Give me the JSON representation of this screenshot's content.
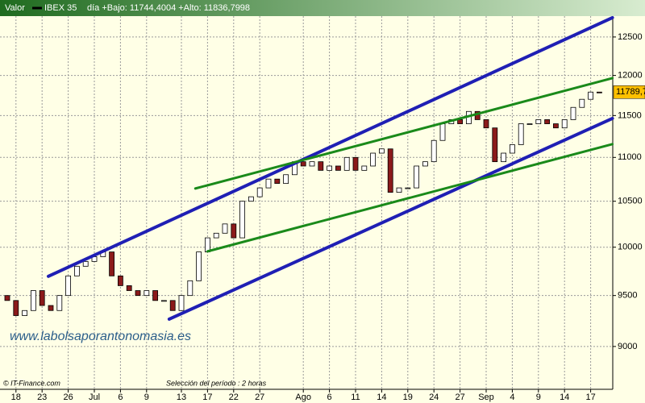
{
  "chart_data": {
    "type": "candlestick",
    "header": {
      "label": "Valor",
      "info": "día +Bajo: 11744,4004 +Alto: 11836,7998"
    },
    "series_name": "IBEX 35",
    "categories": [
      null,
      "18",
      null,
      null,
      "23",
      null,
      null,
      "26",
      null,
      null,
      "Jul",
      null,
      null,
      "6",
      null,
      null,
      "9",
      null,
      null,
      null,
      "13",
      null,
      null,
      "17",
      null,
      null,
      "22",
      null,
      null,
      "27",
      null,
      null,
      null,
      null,
      "Ago",
      null,
      null,
      "6",
      null,
      null,
      "11",
      null,
      null,
      "14",
      null,
      null,
      "19",
      null,
      null,
      "24",
      null,
      null,
      "27",
      null,
      null,
      "Sep",
      null,
      null,
      "4",
      null,
      null,
      "9",
      null,
      null,
      "14",
      null,
      null,
      "17",
      null,
      null
    ],
    "open": [
      9500,
      9450,
      9300,
      9350,
      9550,
      9400,
      9350,
      9500,
      9700,
      9800,
      9850,
      9900,
      9950,
      9700,
      9600,
      9550,
      9500,
      9550,
      9450,
      9450,
      9350,
      9500,
      9650,
      9950,
      10100,
      10150,
      10250,
      10100,
      10500,
      10550,
      10650,
      10750,
      10700,
      10800,
      10950,
      10900,
      10950,
      10850,
      10900,
      10850,
      11000,
      10850,
      10900,
      11050,
      11100,
      10600,
      10650,
      10650,
      10900,
      10950,
      11200,
      11400,
      11450,
      11400,
      11550,
      11450,
      11350,
      10950,
      11050,
      11150,
      11400,
      11400,
      11450,
      11400,
      11350,
      11450,
      11600,
      11700,
      11790,
      null
    ],
    "close": [
      9450,
      9300,
      9350,
      9550,
      9400,
      9350,
      9500,
      9700,
      9800,
      9850,
      9900,
      9950,
      9700,
      9600,
      9550,
      9500,
      9550,
      9450,
      9450,
      9350,
      9500,
      9650,
      9950,
      10100,
      10150,
      10250,
      10100,
      10500,
      10550,
      10650,
      10750,
      10700,
      10800,
      10950,
      10900,
      10950,
      10850,
      10900,
      10850,
      11000,
      10850,
      10900,
      11050,
      11100,
      10600,
      10650,
      10650,
      10900,
      10950,
      11200,
      11400,
      11450,
      11400,
      11550,
      11450,
      11350,
      10950,
      11050,
      11150,
      11400,
      11400,
      11450,
      11400,
      11350,
      11450,
      11600,
      11700,
      11790,
      11789.7,
      null
    ],
    "up_color": "#ffffff",
    "down_color": "#8b1a1a",
    "log_scale": true,
    "ylim": [
      8600,
      12780
    ],
    "yticks": [
      9000,
      9500,
      10000,
      10500,
      11000,
      11500,
      12000,
      12500
    ],
    "grid": true,
    "last_price": {
      "value": 11789.7,
      "label": "11789,7"
    },
    "trendlines": [
      {
        "color": "#1f1fb4",
        "start": [
          4.72,
          9696
        ],
        "end": [
          69.5,
          12759
        ]
      },
      {
        "color": "#1f1fb4",
        "start": [
          18.6,
          9265
        ],
        "end": [
          69.5,
          11465
        ]
      },
      {
        "color": "#1a8a1a",
        "start": [
          21.6,
          10643
        ],
        "end": [
          69.5,
          11966
        ]
      },
      {
        "color": "#1a8a1a",
        "start": [
          23,
          9956
        ],
        "end": [
          69.5,
          11156
        ]
      }
    ],
    "watermark": "www.labolsaporantonomasia.es",
    "source": "© IT-Finance.com",
    "period": "Selección del período : 2 horas"
  }
}
